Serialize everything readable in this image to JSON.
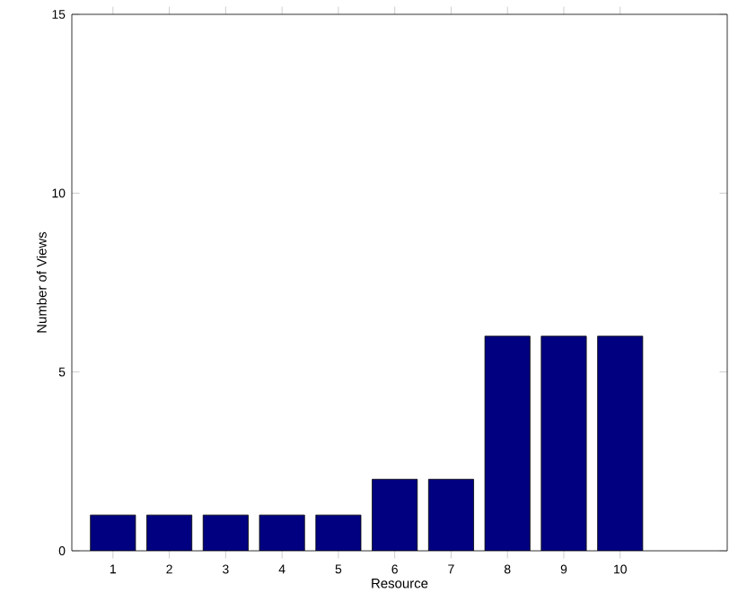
{
  "chart_data": {
    "type": "bar",
    "xlabel": "Resource",
    "ylabel": "Number of Views",
    "categories": [
      "1",
      "2",
      "3",
      "4",
      "5",
      "6",
      "7",
      "8",
      "9",
      "10"
    ],
    "values": [
      1,
      1,
      1,
      1,
      1,
      2,
      2,
      6,
      6,
      6
    ],
    "color": "#000080",
    "ylim": [
      0,
      15
    ],
    "yticks": [
      0,
      5,
      10,
      15
    ],
    "grid": false
  }
}
